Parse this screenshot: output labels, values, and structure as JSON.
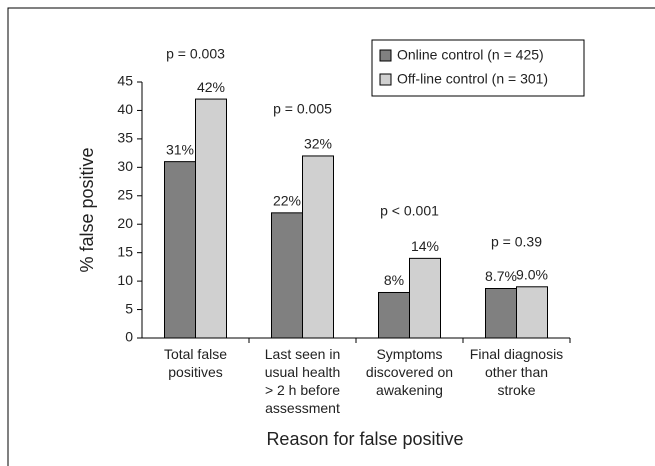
{
  "chart_data": {
    "type": "bar",
    "categories": [
      "Total false\npositives",
      "Last seen in\nusual health\n> 2 h before\nassessment",
      "Symptoms\ndiscovered on\nawakening",
      "Final diagnosis\nother than\nstroke"
    ],
    "series": [
      {
        "name": "Online control (n = 425)",
        "color": "#808080",
        "values": [
          31,
          22,
          8,
          8.7
        ],
        "value_labels": [
          "31%",
          "22%",
          "8%",
          "8.7%"
        ]
      },
      {
        "name": "Off-line control (n = 301)",
        "color": "#d0d0d0",
        "values": [
          42,
          32,
          14,
          9.0
        ],
        "value_labels": [
          "42%",
          "32%",
          "14%",
          "9.0%"
        ]
      }
    ],
    "annotations": [
      "p = 0.003",
      "p = 0.005",
      "p < 0.001",
      "p = 0.39"
    ],
    "ylabel": "% false positive",
    "xlabel": "Reason for false positive",
    "ylim": [
      0,
      45
    ],
    "yticks": [
      0,
      5,
      10,
      15,
      20,
      25,
      30,
      35,
      40,
      45
    ],
    "legend": "upper-right"
  }
}
